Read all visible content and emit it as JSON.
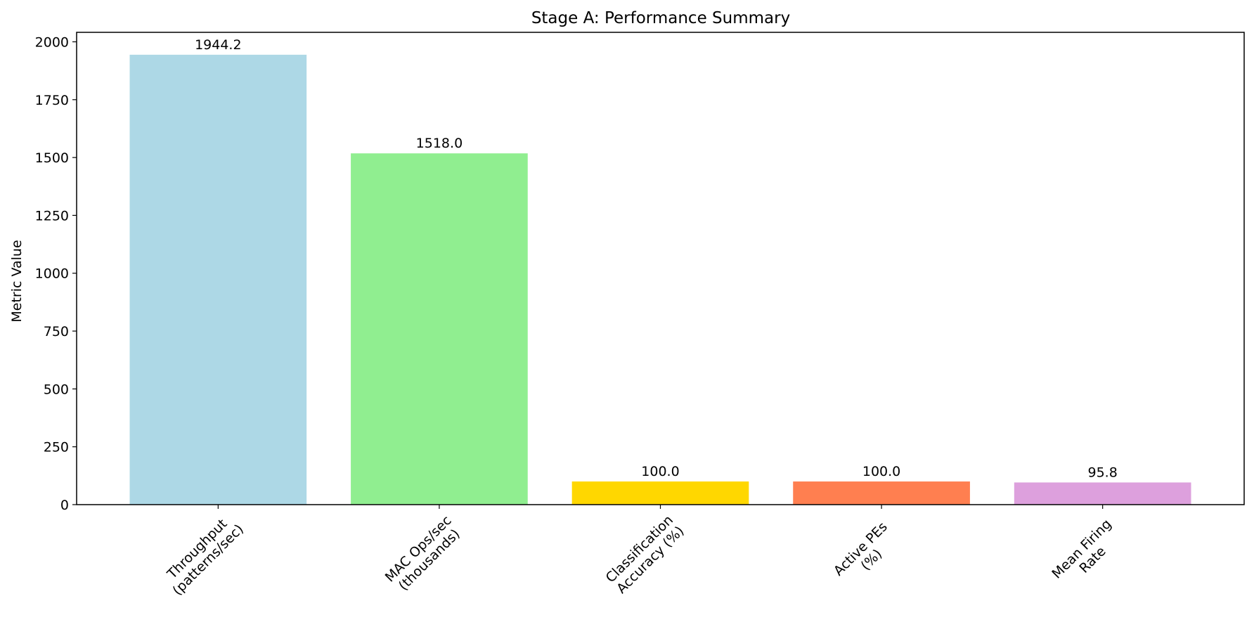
{
  "chart_data": {
    "type": "bar",
    "title": "Stage A: Performance Summary",
    "xlabel": "",
    "ylabel": "Metric Value",
    "categories": [
      [
        "Throughput",
        "(patterns/sec)"
      ],
      [
        "MAC Ops/sec",
        "(thousands)"
      ],
      [
        "Classification",
        "Accuracy (%)"
      ],
      [
        "Active PEs",
        "(%)"
      ],
      [
        "Mean Firing",
        "Rate"
      ]
    ],
    "values": [
      1944.2,
      1518.0,
      100.0,
      100.0,
      95.8
    ],
    "value_labels": [
      "1944.2",
      "1518.0",
      "100.0",
      "100.0",
      "95.8"
    ],
    "colors": [
      "#add8e6",
      "#90ee90",
      "#ffd700",
      "#ff7f50",
      "#dda0dd"
    ],
    "ylim": [
      0,
      2041
    ],
    "yticks": [
      0,
      250,
      500,
      750,
      1000,
      1250,
      1500,
      1750,
      2000
    ],
    "grid": false,
    "legend": "none"
  }
}
